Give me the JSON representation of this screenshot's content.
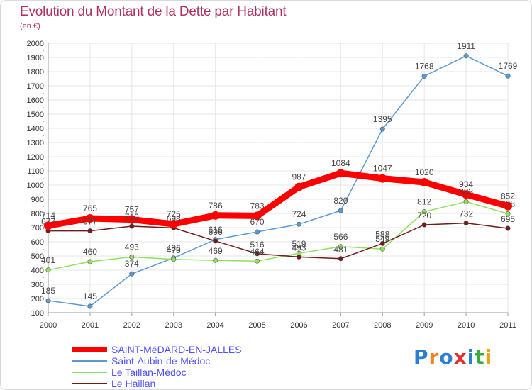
{
  "header": {
    "title": "Evolution du Montant de la Dette par Habitant",
    "unit": "(en €)"
  },
  "logo": {
    "text": "Proxiti",
    "colors": [
      "#2a7fd4",
      "#f08020",
      "#2a7fd4",
      "#e03030",
      "#2a7fd4",
      "#3caa3c",
      "#f0a000"
    ]
  },
  "chart_data": {
    "type": "line",
    "categories": [
      "2000",
      "2001",
      "2002",
      "2003",
      "2004",
      "2005",
      "2006",
      "2007",
      "2008",
      "2009",
      "2010",
      "2011"
    ],
    "ylim": [
      100,
      2000
    ],
    "yticks": [
      "100",
      "200",
      "300",
      "400",
      "500",
      "600",
      "700",
      "800",
      "900",
      "1000",
      "1100",
      "1200",
      "1300",
      "1400",
      "1500",
      "1600",
      "1700",
      "1800",
      "1900",
      "2000"
    ],
    "grid": true,
    "legend_position": "bottom-left",
    "series": [
      {
        "name": "SAINT-MéDARD-EN-JALLES",
        "color": "#ff0000",
        "values": [
          714,
          765,
          757,
          725,
          786,
          783,
          987,
          1084,
          1047,
          1020,
          934,
          852
        ]
      },
      {
        "name": "Saint-Aubin-de-Médoc",
        "color": "#5b9bd5",
        "values": [
          185,
          145,
          374,
          486,
          616,
          670,
          724,
          820,
          1395,
          1768,
          1911,
          1769
        ]
      },
      {
        "name": "Le Taillan-Médoc",
        "color": "#90e060",
        "values": [
          401,
          460,
          493,
          476,
          469,
          464,
          519,
          566,
          549,
          812,
          883,
          798
        ]
      },
      {
        "name": "Le Haillan",
        "color": "#701c1c",
        "values": [
          677,
          677,
          710,
          698,
          606,
          516,
          493,
          481,
          588,
          720,
          732,
          695
        ]
      }
    ]
  }
}
